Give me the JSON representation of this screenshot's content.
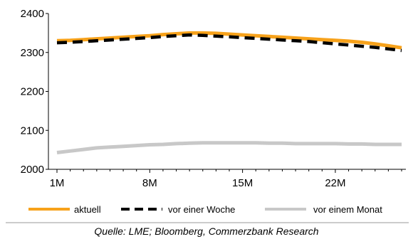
{
  "chart_data": {
    "type": "line",
    "x": [
      "1M",
      "2M",
      "3M",
      "4M",
      "5M",
      "6M",
      "7M",
      "8M",
      "9M",
      "10M",
      "11M",
      "12M",
      "13M",
      "14M",
      "15M",
      "16M",
      "17M",
      "18M",
      "19M",
      "20M",
      "21M",
      "22M",
      "23M",
      "24M",
      "25M",
      "26M",
      "27M"
    ],
    "xticks": [
      "1M",
      "8M",
      "15M",
      "22M"
    ],
    "yticks": [
      "2000",
      "2100",
      "2200",
      "2300",
      "2400"
    ],
    "ylim": [
      2000,
      2400
    ],
    "grid": false,
    "legend_position": "bottom",
    "series": [
      {
        "name": "aktuell",
        "color": "#F7A21B",
        "style": "solid",
        "width": 5,
        "values": [
          2330,
          2331,
          2333,
          2335,
          2337,
          2339,
          2341,
          2343,
          2346,
          2348,
          2350,
          2350,
          2349,
          2347,
          2345,
          2343,
          2341,
          2339,
          2337,
          2335,
          2333,
          2331,
          2329,
          2326,
          2322,
          2317,
          2312
        ]
      },
      {
        "name": "vor einer Woche",
        "color": "#000000",
        "style": "dashed",
        "width": 5,
        "values": [
          2325,
          2326,
          2328,
          2330,
          2332,
          2334,
          2336,
          2338,
          2341,
          2343,
          2345,
          2344,
          2342,
          2340,
          2338,
          2336,
          2334,
          2332,
          2330,
          2328,
          2325,
          2322,
          2319,
          2316,
          2313,
          2309,
          2305
        ]
      },
      {
        "name": "vor einem Monat",
        "color": "#C8C8C8",
        "style": "solid",
        "width": 5,
        "values": [
          2043,
          2047,
          2051,
          2055,
          2057,
          2059,
          2061,
          2063,
          2064,
          2066,
          2067,
          2068,
          2068,
          2068,
          2068,
          2068,
          2067,
          2067,
          2066,
          2066,
          2066,
          2066,
          2065,
          2065,
          2064,
          2064,
          2064
        ]
      }
    ],
    "source": "Quelle: LME; Bloomberg, Commerzbank Research"
  }
}
